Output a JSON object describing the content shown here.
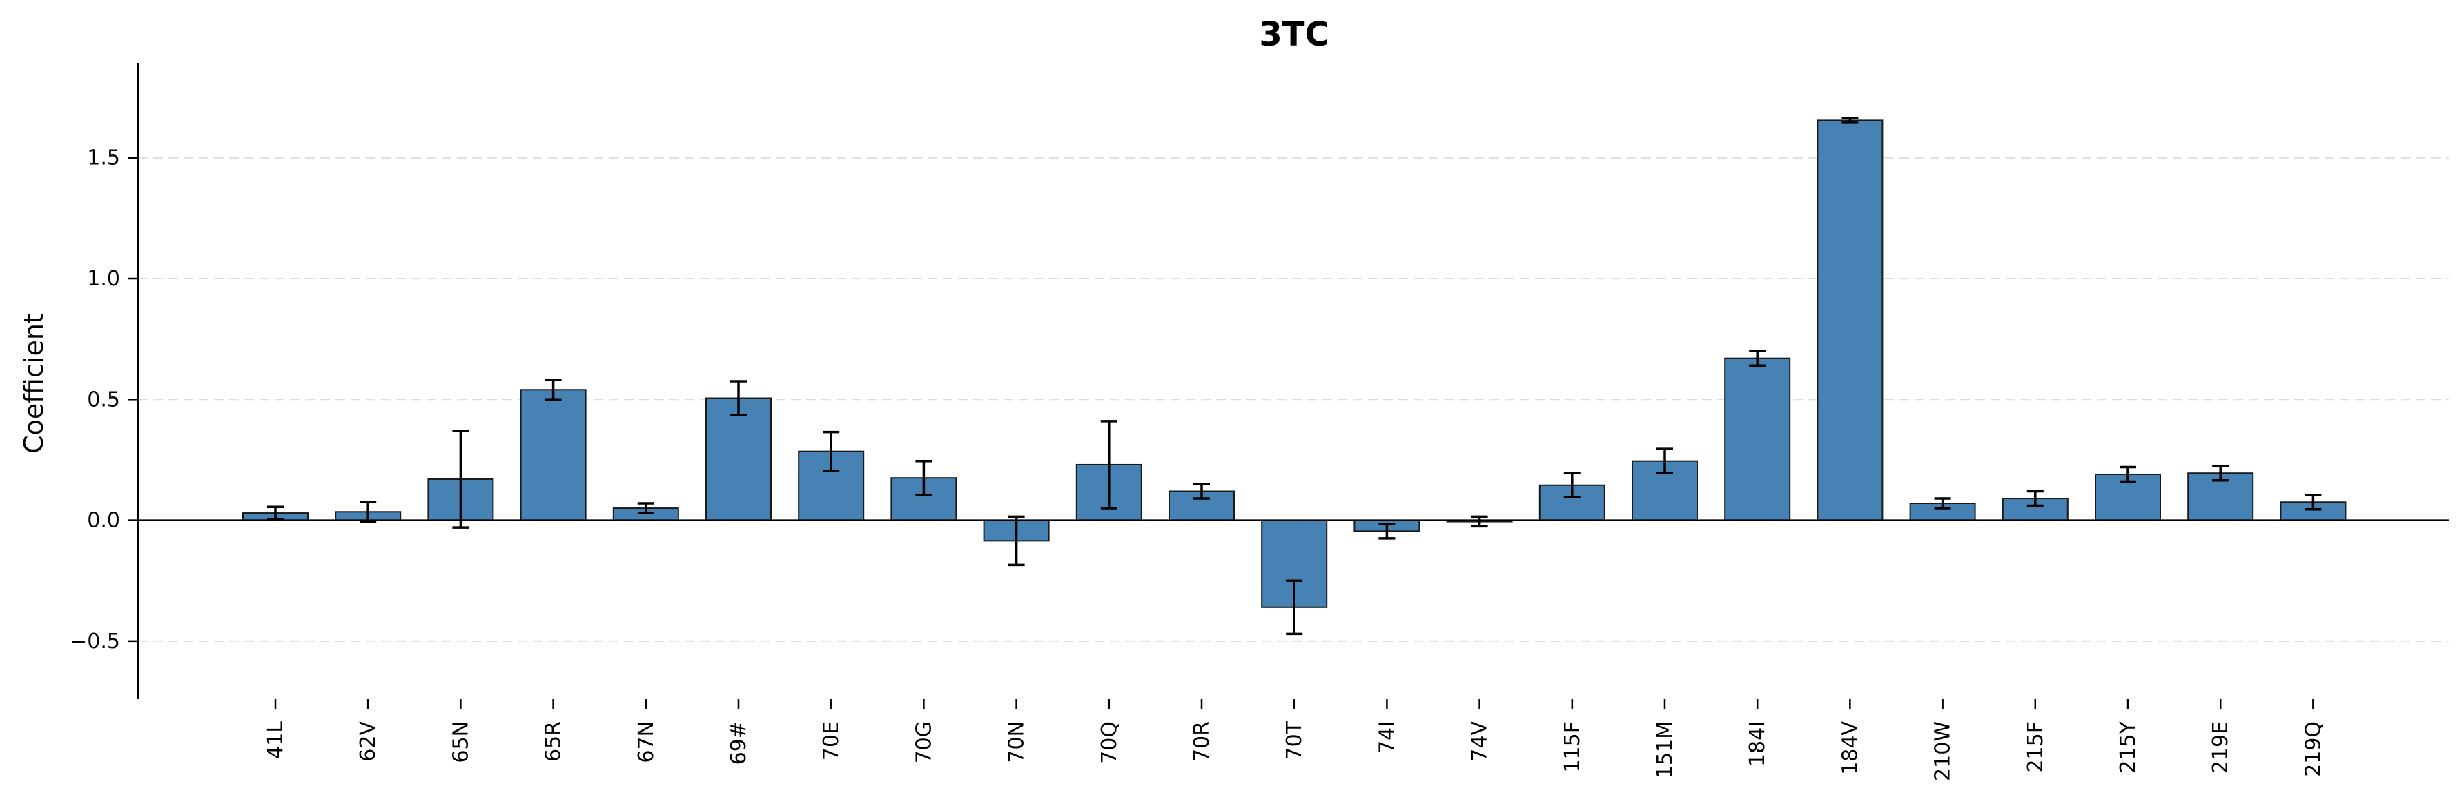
{
  "chart_data": {
    "type": "bar",
    "title": "3TC",
    "xlabel": "",
    "ylabel": "Coefficient",
    "ylim": [
      -0.74,
      1.89
    ],
    "yticks": [
      -0.5,
      0.0,
      0.5,
      1.0,
      1.5
    ],
    "ytick_labels": [
      "−0.5",
      "0.0",
      "0.5",
      "1.0",
      "1.5"
    ],
    "grid": true,
    "bar_color": "#4682b4",
    "categories": [
      "41L",
      "62V",
      "65N",
      "65R",
      "67N",
      "69#",
      "70E",
      "70G",
      "70N",
      "70Q",
      "70R",
      "70T",
      "74I",
      "74V",
      "115F",
      "151M",
      "184I",
      "184V",
      "210W",
      "215F",
      "215Y",
      "219E",
      "219Q"
    ],
    "values": [
      0.03,
      0.035,
      0.17,
      0.54,
      0.05,
      0.505,
      0.285,
      0.175,
      -0.085,
      0.23,
      0.12,
      -0.36,
      -0.045,
      -0.005,
      0.145,
      0.245,
      0.67,
      1.655,
      0.07,
      0.09,
      0.19,
      0.195,
      0.075
    ],
    "errors": [
      0.025,
      0.04,
      0.2,
      0.04,
      0.02,
      0.07,
      0.08,
      0.07,
      0.1,
      0.18,
      0.03,
      0.11,
      0.03,
      0.02,
      0.05,
      0.05,
      0.03,
      0.01,
      0.02,
      0.03,
      0.03,
      0.03,
      0.03
    ]
  }
}
